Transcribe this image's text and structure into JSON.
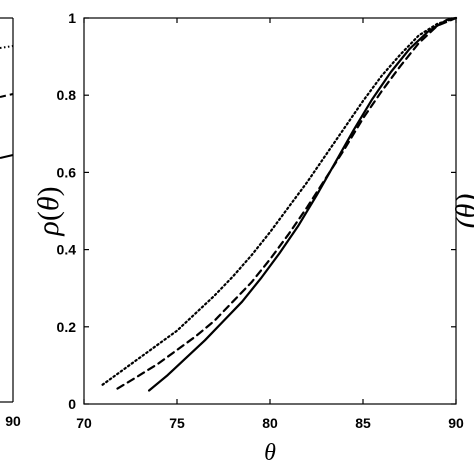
{
  "chart_data": [
    {
      "type": "line",
      "xlabel": "θ",
      "ylabel": "ρ(θ)",
      "ylabel_parts": {
        "symbol": "ρ",
        "open": "(",
        "var": "θ",
        "close": ")"
      },
      "xlim": [
        70,
        90
      ],
      "ylim": [
        0,
        1
      ],
      "xticks": [
        "70",
        "75",
        "80",
        "85",
        "90"
      ],
      "yticks": [
        "0",
        "0.2",
        "0.4",
        "0.6",
        "0.8",
        "1"
      ],
      "grid": false,
      "series": [
        {
          "style": "solid",
          "x": [
            73.5,
            74.5,
            75.5,
            76.5,
            77.5,
            78.5,
            79.5,
            80.5,
            81.5,
            82.5,
            83.5,
            84.5,
            85.5,
            86.5,
            87.5,
            88.5,
            89.5,
            90
          ],
          "values": [
            0.035,
            0.075,
            0.12,
            0.165,
            0.215,
            0.265,
            0.325,
            0.39,
            0.46,
            0.54,
            0.625,
            0.71,
            0.79,
            0.86,
            0.92,
            0.965,
            0.995,
            1.0
          ]
        },
        {
          "style": "dashed",
          "x": [
            71.8,
            73,
            74,
            75,
            76,
            77,
            78,
            79,
            80,
            81,
            82,
            83,
            84,
            85,
            86,
            87,
            88,
            89,
            90
          ],
          "values": [
            0.04,
            0.075,
            0.105,
            0.14,
            0.175,
            0.215,
            0.265,
            0.315,
            0.375,
            0.44,
            0.51,
            0.585,
            0.66,
            0.74,
            0.81,
            0.875,
            0.935,
            0.98,
            1.0
          ]
        },
        {
          "style": "dotted",
          "x": [
            71,
            72,
            73,
            74,
            75,
            76,
            77,
            78,
            79,
            80,
            81,
            82,
            83,
            84,
            85,
            86,
            87,
            88,
            89,
            90
          ],
          "values": [
            0.05,
            0.085,
            0.12,
            0.155,
            0.19,
            0.235,
            0.28,
            0.33,
            0.385,
            0.445,
            0.51,
            0.575,
            0.645,
            0.715,
            0.785,
            0.85,
            0.905,
            0.955,
            0.985,
            1.0
          ]
        }
      ]
    },
    {
      "type": "line",
      "partial": "left-edge",
      "xticks": [
        "90"
      ],
      "series": [
        {
          "style": "dotted",
          "value_near_right_edge": 0.92
        },
        {
          "style": "dashed",
          "value_near_right_edge": 0.8
        },
        {
          "style": "solid",
          "value_near_right_edge": 0.64
        }
      ]
    },
    {
      "type": "line",
      "partial": "right-edge",
      "ylabel_fragment": "(θ)"
    }
  ]
}
